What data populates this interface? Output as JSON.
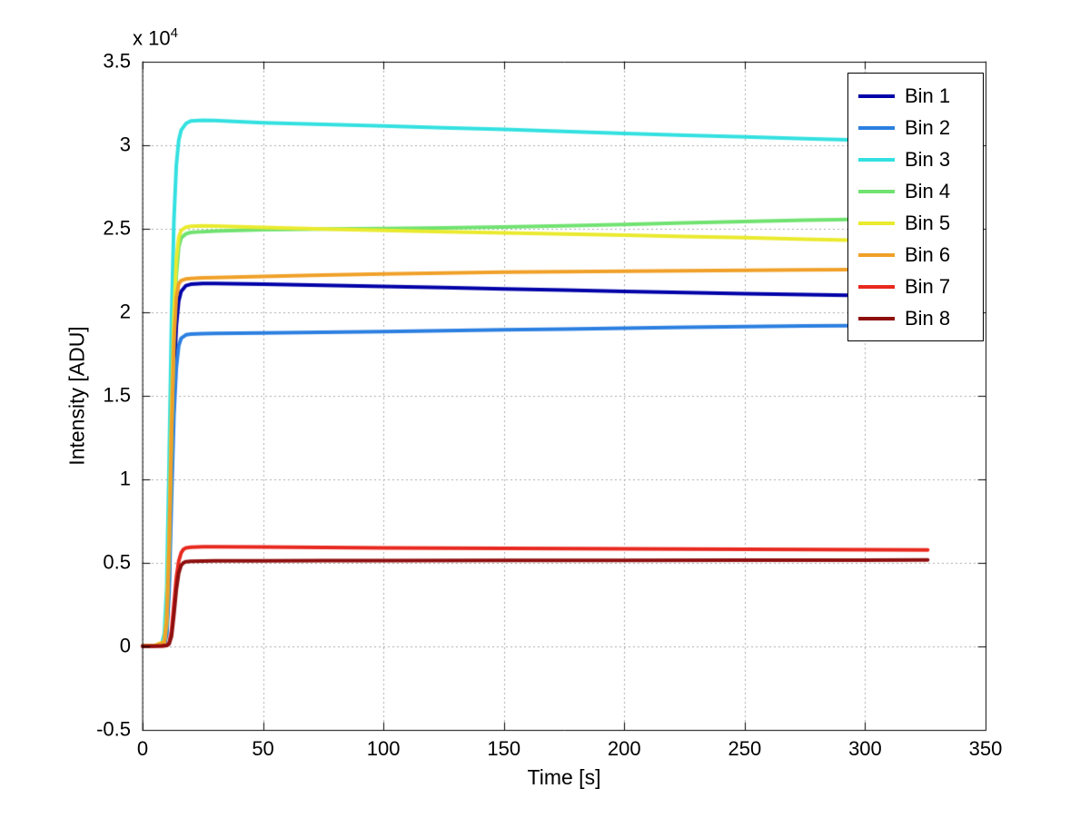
{
  "figure": {
    "background": "#ffffff",
    "exponent_label": {
      "prefix": "x 10",
      "exponent": "4"
    }
  },
  "chart_data": {
    "type": "line",
    "title": "",
    "xlabel": "Time [s]",
    "ylabel": "Intensity [ADU]",
    "xlim": [
      0,
      350
    ],
    "ylim": [
      -5000,
      35000
    ],
    "xticks": [
      0,
      50,
      100,
      150,
      200,
      250,
      300,
      350
    ],
    "xtick_labels": [
      "0",
      "50",
      "100",
      "150",
      "200",
      "250",
      "300",
      "350"
    ],
    "yticks": [
      -5000,
      0,
      5000,
      10000,
      15000,
      20000,
      25000,
      30000,
      35000
    ],
    "ytick_labels": [
      "-0.5",
      "0",
      "0.5",
      "1",
      "1.5",
      "2",
      "2.5",
      "3",
      "3.5"
    ],
    "grid": true,
    "grid_style": "dotted",
    "grid_color": "#a8a8a8",
    "axis_color": "#000000",
    "legend_position": "top-right",
    "series": [
      {
        "name": "Bin 1",
        "color": "#0000A8",
        "points": [
          [
            0,
            30
          ],
          [
            5,
            40
          ],
          [
            9,
            100
          ],
          [
            10,
            900
          ],
          [
            11,
            4000
          ],
          [
            12,
            10500
          ],
          [
            13,
            16000
          ],
          [
            14,
            19200
          ],
          [
            15,
            20700
          ],
          [
            16,
            21250
          ],
          [
            18,
            21600
          ],
          [
            20,
            21680
          ],
          [
            25,
            21720
          ],
          [
            30,
            21730
          ],
          [
            50,
            21680
          ],
          [
            75,
            21620
          ],
          [
            100,
            21550
          ],
          [
            125,
            21480
          ],
          [
            150,
            21400
          ],
          [
            175,
            21330
          ],
          [
            200,
            21250
          ],
          [
            225,
            21180
          ],
          [
            250,
            21120
          ],
          [
            275,
            21060
          ],
          [
            293,
            21020
          ]
        ]
      },
      {
        "name": "Bin 2",
        "color": "#2B7FE0",
        "points": [
          [
            0,
            30
          ],
          [
            5,
            40
          ],
          [
            9,
            80
          ],
          [
            10,
            700
          ],
          [
            11,
            3200
          ],
          [
            12,
            8800
          ],
          [
            13,
            13800
          ],
          [
            14,
            16700
          ],
          [
            15,
            18000
          ],
          [
            16,
            18450
          ],
          [
            18,
            18650
          ],
          [
            20,
            18700
          ],
          [
            25,
            18720
          ],
          [
            30,
            18730
          ],
          [
            50,
            18760
          ],
          [
            75,
            18800
          ],
          [
            100,
            18850
          ],
          [
            125,
            18900
          ],
          [
            150,
            18950
          ],
          [
            175,
            19000
          ],
          [
            200,
            19050
          ],
          [
            225,
            19100
          ],
          [
            250,
            19140
          ],
          [
            275,
            19180
          ],
          [
            293,
            19200
          ]
        ]
      },
      {
        "name": "Bin 3",
        "color": "#33E0E0",
        "points": [
          [
            0,
            30
          ],
          [
            5,
            50
          ],
          [
            8,
            150
          ],
          [
            9,
            800
          ],
          [
            10,
            3500
          ],
          [
            11,
            11000
          ],
          [
            12,
            19500
          ],
          [
            13,
            25500
          ],
          [
            14,
            28800
          ],
          [
            15,
            30300
          ],
          [
            16,
            30900
          ],
          [
            18,
            31300
          ],
          [
            20,
            31450
          ],
          [
            25,
            31500
          ],
          [
            30,
            31480
          ],
          [
            50,
            31350
          ],
          [
            75,
            31250
          ],
          [
            100,
            31150
          ],
          [
            125,
            31050
          ],
          [
            150,
            30950
          ],
          [
            175,
            30830
          ],
          [
            200,
            30700
          ],
          [
            225,
            30600
          ],
          [
            250,
            30500
          ],
          [
            275,
            30400
          ],
          [
            293,
            30330
          ]
        ]
      },
      {
        "name": "Bin 4",
        "color": "#70E270",
        "points": [
          [
            0,
            30
          ],
          [
            5,
            40
          ],
          [
            9,
            200
          ],
          [
            10,
            1300
          ],
          [
            11,
            5500
          ],
          [
            12,
            12500
          ],
          [
            13,
            18500
          ],
          [
            14,
            22200
          ],
          [
            15,
            23900
          ],
          [
            16,
            24450
          ],
          [
            18,
            24700
          ],
          [
            20,
            24780
          ],
          [
            25,
            24830
          ],
          [
            30,
            24860
          ],
          [
            50,
            24940
          ],
          [
            75,
            24990
          ],
          [
            100,
            25020
          ],
          [
            125,
            25060
          ],
          [
            150,
            25110
          ],
          [
            175,
            25180
          ],
          [
            200,
            25260
          ],
          [
            225,
            25350
          ],
          [
            250,
            25440
          ],
          [
            275,
            25520
          ],
          [
            293,
            25560
          ]
        ]
      },
      {
        "name": "Bin 5",
        "color": "#EAEA2E",
        "points": [
          [
            0,
            30
          ],
          [
            5,
            50
          ],
          [
            9,
            300
          ],
          [
            10,
            1800
          ],
          [
            11,
            6500
          ],
          [
            12,
            13800
          ],
          [
            13,
            19800
          ],
          [
            14,
            23200
          ],
          [
            15,
            24500
          ],
          [
            16,
            24900
          ],
          [
            18,
            25100
          ],
          [
            20,
            25150
          ],
          [
            25,
            25180
          ],
          [
            30,
            25160
          ],
          [
            50,
            25080
          ],
          [
            75,
            24980
          ],
          [
            100,
            24900
          ],
          [
            125,
            24830
          ],
          [
            150,
            24760
          ],
          [
            175,
            24690
          ],
          [
            200,
            24620
          ],
          [
            225,
            24540
          ],
          [
            250,
            24470
          ],
          [
            275,
            24380
          ],
          [
            293,
            24320
          ]
        ]
      },
      {
        "name": "Bin 6",
        "color": "#F0A028",
        "points": [
          [
            0,
            30
          ],
          [
            5,
            40
          ],
          [
            9,
            250
          ],
          [
            10,
            1500
          ],
          [
            11,
            5800
          ],
          [
            12,
            12800
          ],
          [
            13,
            18300
          ],
          [
            14,
            20900
          ],
          [
            15,
            21700
          ],
          [
            16,
            21900
          ],
          [
            18,
            22000
          ],
          [
            20,
            22030
          ],
          [
            25,
            22060
          ],
          [
            30,
            22080
          ],
          [
            50,
            22150
          ],
          [
            75,
            22230
          ],
          [
            100,
            22300
          ],
          [
            125,
            22350
          ],
          [
            150,
            22400
          ],
          [
            175,
            22430
          ],
          [
            200,
            22460
          ],
          [
            225,
            22490
          ],
          [
            250,
            22520
          ],
          [
            275,
            22540
          ],
          [
            293,
            22550
          ]
        ]
      },
      {
        "name": "Bin 7",
        "color": "#E8281E",
        "points": [
          [
            0,
            20
          ],
          [
            8,
            30
          ],
          [
            10,
            60
          ],
          [
            11,
            200
          ],
          [
            12,
            900
          ],
          [
            13,
            2500
          ],
          [
            14,
            4100
          ],
          [
            15,
            5100
          ],
          [
            16,
            5600
          ],
          [
            17,
            5820
          ],
          [
            18,
            5900
          ],
          [
            20,
            5940
          ],
          [
            25,
            5960
          ],
          [
            30,
            5960
          ],
          [
            50,
            5950
          ],
          [
            75,
            5920
          ],
          [
            100,
            5900
          ],
          [
            150,
            5870
          ],
          [
            200,
            5840
          ],
          [
            250,
            5810
          ],
          [
            300,
            5790
          ],
          [
            326,
            5780
          ]
        ]
      },
      {
        "name": "Bin 8",
        "color": "#8F0E0E",
        "points": [
          [
            0,
            20
          ],
          [
            8,
            30
          ],
          [
            10,
            50
          ],
          [
            11,
            150
          ],
          [
            12,
            600
          ],
          [
            13,
            1900
          ],
          [
            14,
            3400
          ],
          [
            15,
            4400
          ],
          [
            16,
            4850
          ],
          [
            17,
            5010
          ],
          [
            18,
            5070
          ],
          [
            20,
            5100
          ],
          [
            25,
            5110
          ],
          [
            30,
            5120
          ],
          [
            50,
            5125
          ],
          [
            75,
            5130
          ],
          [
            100,
            5135
          ],
          [
            150,
            5145
          ],
          [
            200,
            5150
          ],
          [
            250,
            5160
          ],
          [
            300,
            5165
          ],
          [
            326,
            5170
          ]
        ]
      }
    ]
  }
}
